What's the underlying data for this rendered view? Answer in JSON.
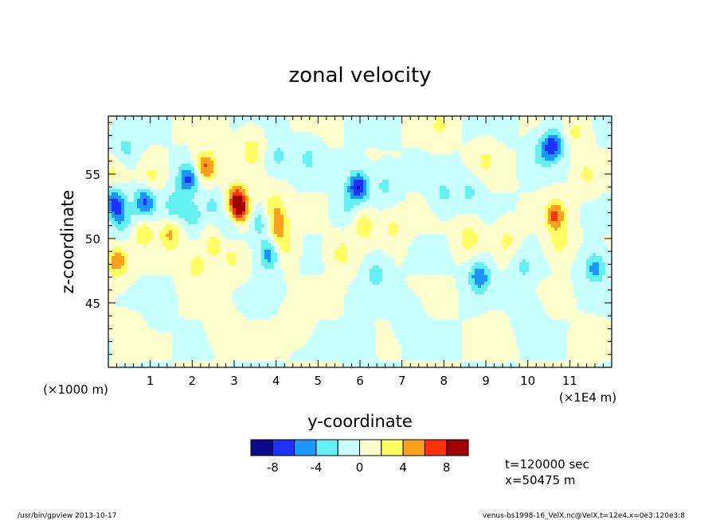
{
  "chart_data": {
    "type": "heatmap",
    "title": "zonal velocity",
    "xlabel": "y-coordinate",
    "ylabel": "z-coordinate",
    "x_unit_left": "(×1000 m)",
    "x_unit_right": "(×1E4 m)",
    "x_ticks": [
      "1",
      "2",
      "3",
      "4",
      "5",
      "6",
      "7",
      "8",
      "9",
      "10",
      "11"
    ],
    "xlim": [
      0,
      120000
    ],
    "y_ticks": [
      "45",
      "50",
      "55"
    ],
    "ylim": [
      40000,
      59500
    ],
    "colorbar": {
      "levels": [
        -10,
        -8,
        -6,
        -4,
        -2,
        0,
        2,
        4,
        6,
        8,
        10
      ],
      "labels": [
        "-8",
        "-4",
        "0",
        "4",
        "8"
      ],
      "colors": [
        "#0a0a8c",
        "#1e32ff",
        "#1e96ff",
        "#64f0f0",
        "#c8ffff",
        "#ffffcd",
        "#ffff64",
        "#ffa01e",
        "#ff320a",
        "#a00000"
      ]
    },
    "annotations": [
      "t=120000 sec",
      "x=50475 m"
    ],
    "features": [
      {
        "y": 1500,
        "z": 52800,
        "value": -6.5
      },
      {
        "y": 3200,
        "z": 51500,
        "value": -3.5
      },
      {
        "y": 4200,
        "z": 57000,
        "value": -2.5
      },
      {
        "y": 2200,
        "z": 48200,
        "value": 5.5
      },
      {
        "y": 1000,
        "z": 55000,
        "value": 2.5
      },
      {
        "y": 8800,
        "z": 52800,
        "value": -6.5
      },
      {
        "y": 10200,
        "z": 54800,
        "value": 2.5
      },
      {
        "y": 8500,
        "z": 50400,
        "value": 3.5
      },
      {
        "y": 14800,
        "z": 50200,
        "value": 4.5
      },
      {
        "y": 15800,
        "z": 52500,
        "value": -3.5
      },
      {
        "y": 19000,
        "z": 54600,
        "value": -6.5
      },
      {
        "y": 20000,
        "z": 51800,
        "value": -3
      },
      {
        "y": 21000,
        "z": 47800,
        "value": 3
      },
      {
        "y": 23300,
        "z": 55600,
        "value": 6.5
      },
      {
        "y": 25000,
        "z": 52500,
        "value": -2.5
      },
      {
        "y": 25000,
        "z": 49500,
        "value": 3
      },
      {
        "y": 30700,
        "z": 53200,
        "value": 5.5
      },
      {
        "y": 31200,
        "z": 52200,
        "value": 8.5
      },
      {
        "y": 29300,
        "z": 51200,
        "value": -3
      },
      {
        "y": 29500,
        "z": 48400,
        "value": 2.5
      },
      {
        "y": 34200,
        "z": 56800,
        "value": 3.5
      },
      {
        "y": 36000,
        "z": 51200,
        "value": -3
      },
      {
        "y": 38500,
        "z": 48800,
        "value": -5.5
      },
      {
        "y": 40500,
        "z": 51000,
        "value": 5.5
      },
      {
        "y": 39600,
        "z": 52600,
        "value": 3
      },
      {
        "y": 41500,
        "z": 49200,
        "value": 3
      },
      {
        "y": 40500,
        "z": 56400,
        "value": -2.5
      },
      {
        "y": 47500,
        "z": 56200,
        "value": -2.5
      },
      {
        "y": 55500,
        "z": 48800,
        "value": 3
      },
      {
        "y": 56500,
        "z": 52400,
        "value": -2
      },
      {
        "y": 59500,
        "z": 54000,
        "value": -8
      },
      {
        "y": 61000,
        "z": 51000,
        "value": 3.5
      },
      {
        "y": 66000,
        "z": 54200,
        "value": -2.5
      },
      {
        "y": 64000,
        "z": 47200,
        "value": -3
      },
      {
        "y": 68000,
        "z": 50800,
        "value": 2.5
      },
      {
        "y": 71500,
        "z": 44000,
        "value": -1.5
      },
      {
        "y": 79000,
        "z": 58800,
        "value": 2.5
      },
      {
        "y": 80000,
        "z": 53500,
        "value": -2.5
      },
      {
        "y": 86000,
        "z": 50000,
        "value": 3.5
      },
      {
        "y": 88500,
        "z": 47000,
        "value": -6
      },
      {
        "y": 86000,
        "z": 53600,
        "value": -2.5
      },
      {
        "y": 90000,
        "z": 56000,
        "value": 2.5
      },
      {
        "y": 95000,
        "z": 49800,
        "value": 2.5
      },
      {
        "y": 99000,
        "z": 47800,
        "value": -2.5
      },
      {
        "y": 103000,
        "z": 56500,
        "value": -2.5
      },
      {
        "y": 106000,
        "z": 57200,
        "value": -7.5
      },
      {
        "y": 106500,
        "z": 51800,
        "value": 6.5
      },
      {
        "y": 107500,
        "z": 49700,
        "value": 3
      },
      {
        "y": 111500,
        "z": 58200,
        "value": 2.5
      },
      {
        "y": 116000,
        "z": 47700,
        "value": -5
      },
      {
        "y": 114000,
        "z": 55000,
        "value": 2.5
      },
      {
        "y": 5000,
        "z": 42500,
        "value": 1.5
      },
      {
        "y": 27000,
        "z": 43000,
        "value": 1.5
      },
      {
        "y": 45000,
        "z": 43500,
        "value": 1.5
      },
      {
        "y": 60000,
        "z": 42000,
        "value": -1.5
      },
      {
        "y": 92000,
        "z": 42500,
        "value": 1.5
      },
      {
        "y": 12000,
        "z": 44800,
        "value": -1.5
      },
      {
        "y": 100000,
        "z": 44000,
        "value": -1.5
      },
      {
        "y": 114000,
        "z": 42000,
        "value": 1.5
      }
    ]
  },
  "footer": {
    "left": "/usr/bin/gpview   2013-10-17",
    "right": "venus-bs1998-16_VelX.nc@VelX,t=12e4,x=0e3:120e3:8"
  }
}
